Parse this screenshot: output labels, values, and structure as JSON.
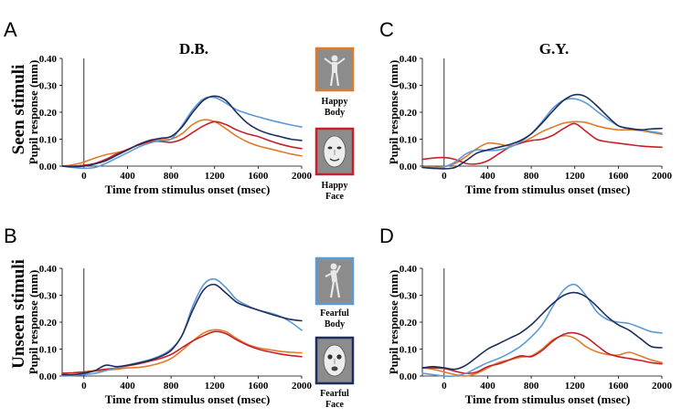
{
  "figure": {
    "row_labels": [
      "Seen stimuli",
      "Unseen stimuli"
    ],
    "legend": [
      {
        "name": "Happy Body",
        "color": "#E07B2A",
        "frame": "#E07B2A",
        "icon": "body-icon",
        "line1": "Happy",
        "line2": "Body"
      },
      {
        "name": "Happy Face",
        "color": "#C8202A",
        "frame": "#C8202A",
        "icon": "face-icon",
        "line1": "Happy",
        "line2": "Face"
      },
      {
        "name": "Fearful Body",
        "color": "#5B9BD5",
        "frame": "#5B9BD5",
        "icon": "body-icon",
        "line1": "Fearful",
        "line2": "Body"
      },
      {
        "name": "Fearful Face",
        "color": "#1F2D5C",
        "frame": "#1F2D5C",
        "icon": "face-icon",
        "line1": "Fearful",
        "line2": "Face"
      }
    ]
  },
  "chart_data": [
    {
      "panel": "A",
      "subject": "D.B.",
      "condition": "Seen stimuli",
      "type": "line",
      "xlabel": "Time from stimulus onset (msec)",
      "ylabel": "Pupil response (mm)",
      "xlim": [
        -200,
        2000
      ],
      "ylim": [
        0,
        0.4
      ],
      "xticks": [
        0,
        400,
        800,
        1200,
        1600,
        2000
      ],
      "yticks": [
        "0.00",
        "0.10",
        "0.20",
        "0.30",
        "0.40"
      ],
      "x": [
        -200,
        -100,
        0,
        100,
        200,
        300,
        400,
        500,
        600,
        700,
        800,
        900,
        1000,
        1100,
        1200,
        1300,
        1400,
        1500,
        1600,
        1700,
        1800,
        1900,
        2000
      ],
      "series": [
        {
          "name": "Happy Body",
          "values": [
            0.0,
            0.005,
            0.015,
            0.03,
            0.042,
            0.05,
            0.06,
            0.08,
            0.095,
            0.098,
            0.1,
            0.12,
            0.155,
            0.172,
            0.165,
            0.14,
            0.112,
            0.09,
            0.075,
            0.065,
            0.055,
            0.045,
            0.038
          ]
        },
        {
          "name": "Happy Face",
          "values": [
            0.0,
            0.0,
            0.003,
            0.01,
            0.025,
            0.045,
            0.062,
            0.078,
            0.09,
            0.092,
            0.088,
            0.1,
            0.125,
            0.15,
            0.165,
            0.155,
            0.135,
            0.12,
            0.11,
            0.095,
            0.082,
            0.072,
            0.065
          ]
        },
        {
          "name": "Fearful Body",
          "values": [
            0.0,
            -0.005,
            -0.008,
            -0.005,
            0.01,
            0.03,
            0.05,
            0.07,
            0.085,
            0.095,
            0.1,
            0.15,
            0.21,
            0.25,
            0.255,
            0.235,
            0.21,
            0.195,
            0.183,
            0.172,
            0.162,
            0.153,
            0.145
          ]
        },
        {
          "name": "Fearful Face",
          "values": [
            0.0,
            -0.002,
            0.0,
            0.008,
            0.02,
            0.04,
            0.06,
            0.08,
            0.095,
            0.103,
            0.11,
            0.145,
            0.2,
            0.245,
            0.26,
            0.245,
            0.2,
            0.16,
            0.135,
            0.12,
            0.11,
            0.1,
            0.095
          ]
        }
      ]
    },
    {
      "panel": "C",
      "subject": "G.Y.",
      "condition": "Seen stimuli",
      "type": "line",
      "xlabel": "Time from stimulus onset (msec)",
      "ylabel": "Pupil response (mm)",
      "xlim": [
        -200,
        2000
      ],
      "ylim": [
        0,
        0.4
      ],
      "xticks": [
        0,
        400,
        800,
        1200,
        1600,
        2000
      ],
      "yticks": [
        "0.00",
        "0.10",
        "0.20",
        "0.30",
        "0.40"
      ],
      "x": [
        -200,
        -100,
        0,
        100,
        200,
        300,
        400,
        500,
        600,
        700,
        800,
        900,
        1000,
        1100,
        1200,
        1300,
        1400,
        1500,
        1600,
        1700,
        1800,
        1900,
        2000
      ],
      "series": [
        {
          "name": "Happy Body",
          "values": [
            -0.005,
            -0.005,
            -0.002,
            0.01,
            0.035,
            0.065,
            0.085,
            0.082,
            0.075,
            0.085,
            0.105,
            0.128,
            0.145,
            0.16,
            0.165,
            0.162,
            0.15,
            0.14,
            0.135,
            0.135,
            0.132,
            0.125,
            0.118
          ]
        },
        {
          "name": "Happy Face",
          "values": [
            0.025,
            0.03,
            0.032,
            0.025,
            0.01,
            0.008,
            0.02,
            0.045,
            0.07,
            0.085,
            0.095,
            0.1,
            0.115,
            0.14,
            0.158,
            0.13,
            0.1,
            0.09,
            0.085,
            0.08,
            0.075,
            0.072,
            0.07
          ]
        },
        {
          "name": "Fearful Body",
          "values": [
            -0.005,
            -0.008,
            -0.003,
            0.015,
            0.045,
            0.06,
            0.058,
            0.06,
            0.07,
            0.09,
            0.12,
            0.165,
            0.215,
            0.245,
            0.25,
            0.235,
            0.205,
            0.175,
            0.15,
            0.14,
            0.135,
            0.128,
            0.122
          ]
        },
        {
          "name": "Fearful Face",
          "values": [
            -0.005,
            -0.008,
            -0.01,
            -0.005,
            0.02,
            0.048,
            0.06,
            0.07,
            0.08,
            0.095,
            0.12,
            0.16,
            0.205,
            0.245,
            0.265,
            0.258,
            0.225,
            0.185,
            0.15,
            0.14,
            0.135,
            0.138,
            0.14
          ]
        }
      ]
    },
    {
      "panel": "B",
      "subject": "D.B.",
      "condition": "Unseen stimuli",
      "type": "line",
      "xlabel": "Time from stimulus onset (msec)",
      "ylabel": "Pupil response (mm)",
      "xlim": [
        -200,
        2000
      ],
      "ylim": [
        0,
        0.4
      ],
      "xticks": [
        0,
        400,
        800,
        1200,
        1600,
        2000
      ],
      "yticks": [
        "0.00",
        "0.10",
        "0.20",
        "0.30",
        "0.40"
      ],
      "x": [
        -200,
        -100,
        0,
        100,
        200,
        300,
        400,
        500,
        600,
        700,
        800,
        900,
        1000,
        1100,
        1200,
        1300,
        1400,
        1500,
        1600,
        1700,
        1800,
        1900,
        2000
      ],
      "series": [
        {
          "name": "Happy Body",
          "values": [
            0.01,
            0.012,
            0.015,
            0.018,
            0.022,
            0.025,
            0.03,
            0.032,
            0.038,
            0.048,
            0.065,
            0.095,
            0.13,
            0.16,
            0.172,
            0.165,
            0.14,
            0.118,
            0.105,
            0.098,
            0.092,
            0.088,
            0.086
          ]
        },
        {
          "name": "Happy Face",
          "values": [
            0.01,
            0.012,
            0.015,
            0.02,
            0.025,
            0.03,
            0.038,
            0.045,
            0.055,
            0.065,
            0.08,
            0.105,
            0.13,
            0.15,
            0.165,
            0.158,
            0.135,
            0.115,
            0.1,
            0.09,
            0.082,
            0.076,
            0.072
          ]
        },
        {
          "name": "Fearful Body",
          "values": [
            0.0,
            0.002,
            0.005,
            0.01,
            0.02,
            0.03,
            0.04,
            0.05,
            0.06,
            0.075,
            0.1,
            0.15,
            0.26,
            0.34,
            0.36,
            0.33,
            0.285,
            0.262,
            0.245,
            0.235,
            0.222,
            0.2,
            0.17
          ]
        },
        {
          "name": "Fearful Face",
          "values": [
            0.005,
            0.005,
            0.01,
            0.02,
            0.04,
            0.035,
            0.04,
            0.048,
            0.058,
            0.072,
            0.095,
            0.15,
            0.245,
            0.32,
            0.34,
            0.31,
            0.275,
            0.258,
            0.245,
            0.232,
            0.22,
            0.21,
            0.205
          ]
        }
      ]
    },
    {
      "panel": "D",
      "subject": "G.Y.",
      "condition": "Unseen stimuli",
      "type": "line",
      "xlabel": "Time from stimulus onset (msec)",
      "ylabel": "Pupil response (mm)",
      "xlim": [
        -200,
        2000
      ],
      "ylim": [
        0,
        0.4
      ],
      "xticks": [
        0,
        400,
        800,
        1200,
        1600,
        2000
      ],
      "yticks": [
        "0.00",
        "0.10",
        "0.20",
        "0.30",
        "0.40"
      ],
      "x": [
        -200,
        -100,
        0,
        100,
        200,
        300,
        400,
        500,
        600,
        700,
        800,
        900,
        1000,
        1100,
        1200,
        1300,
        1400,
        1500,
        1600,
        1700,
        1800,
        1900,
        2000
      ],
      "series": [
        {
          "name": "Happy Body",
          "values": [
            0.03,
            0.025,
            0.015,
            0.005,
            0.0,
            0.01,
            0.03,
            0.05,
            0.06,
            0.07,
            0.075,
            0.1,
            0.135,
            0.15,
            0.14,
            0.11,
            0.09,
            0.08,
            0.078,
            0.088,
            0.075,
            0.06,
            0.05
          ]
        },
        {
          "name": "Happy Face",
          "values": [
            0.03,
            0.03,
            0.028,
            0.018,
            0.01,
            0.015,
            0.035,
            0.045,
            0.06,
            0.075,
            0.072,
            0.095,
            0.13,
            0.155,
            0.16,
            0.145,
            0.115,
            0.085,
            0.072,
            0.065,
            0.058,
            0.05,
            0.045
          ]
        },
        {
          "name": "Fearful Body",
          "values": [
            0.01,
            0.005,
            0.0,
            0.0,
            0.01,
            0.03,
            0.05,
            0.065,
            0.085,
            0.11,
            0.145,
            0.19,
            0.26,
            0.32,
            0.34,
            0.3,
            0.24,
            0.21,
            0.2,
            0.195,
            0.18,
            0.165,
            0.16
          ]
        },
        {
          "name": "Fearful Face",
          "values": [
            0.03,
            0.035,
            0.03,
            0.025,
            0.04,
            0.07,
            0.1,
            0.12,
            0.14,
            0.16,
            0.19,
            0.23,
            0.27,
            0.3,
            0.31,
            0.295,
            0.26,
            0.22,
            0.19,
            0.17,
            0.14,
            0.11,
            0.105
          ]
        }
      ]
    }
  ]
}
